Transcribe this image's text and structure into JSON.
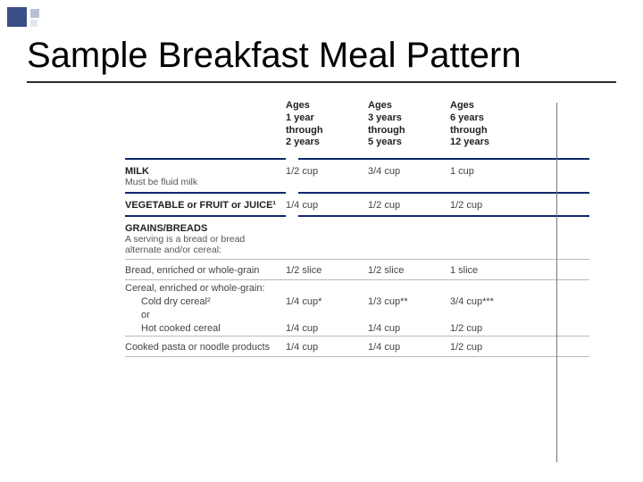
{
  "title": "Sample Breakfast Meal Pattern",
  "columns": {
    "age1": [
      "Ages",
      "1 year",
      "through",
      "2 years"
    ],
    "age2": [
      "Ages",
      "3 years",
      "through",
      "5 years"
    ],
    "age3": [
      "Ages",
      "6 years",
      "through",
      "12 years"
    ]
  },
  "milk": {
    "header": "MILK",
    "sub": "Must be fluid milk",
    "v1": "1/2 cup",
    "v2": "3/4 cup",
    "v3": "1 cup"
  },
  "vegfruit": {
    "header": "VEGETABLE or FRUIT or JUICE¹",
    "v1": "1/4 cup",
    "v2": "1/2 cup",
    "v3": "1/2 cup"
  },
  "grains": {
    "header": "GRAINS/BREADS",
    "sub": "A serving is a bread or bread alternate and/or cereal:",
    "bread": {
      "label": "Bread, enriched or whole-grain",
      "v1": "1/2 slice",
      "v2": "1/2 slice",
      "v3": "1 slice"
    },
    "cereal_label": "Cereal, enriched or whole-grain:",
    "cold": {
      "label": "Cold dry cereal²",
      "v1": "1/4 cup*",
      "v2": "1/3 cup**",
      "v3": "3/4 cup***"
    },
    "or": "or",
    "hot": {
      "label": "Hot cooked cereal",
      "v1": "1/4 cup",
      "v2": "1/4 cup",
      "v3": "1/2 cup"
    },
    "pasta": {
      "label": "Cooked pasta or noodle products",
      "v1": "1/4 cup",
      "v2": "1/4 cup",
      "v3": "1/2 cup"
    }
  },
  "colors": {
    "rule": "#0a2a6b",
    "accent_square": "#3b4f87"
  }
}
